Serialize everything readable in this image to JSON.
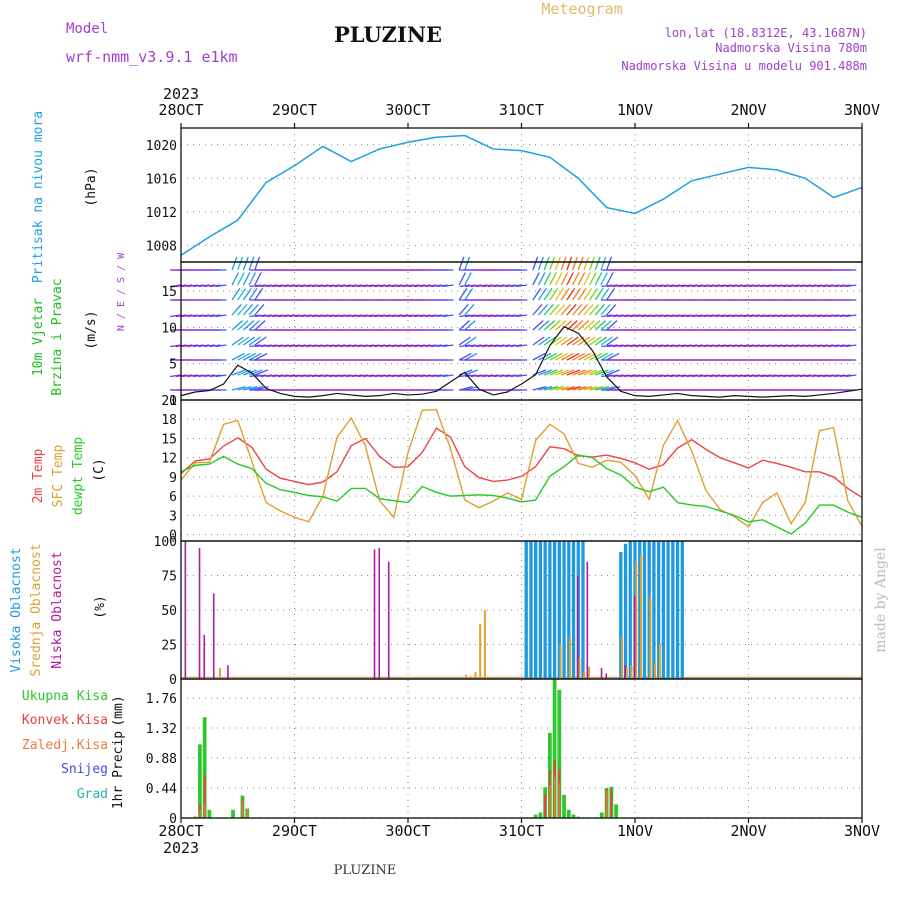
{
  "header": {
    "title": "PLUZINE",
    "model_label": "Model",
    "model_name": "wrf-nmm_v3.9.1 e1km",
    "product": "Meteogram",
    "location": "lon,lat (18.8312E, 43.1687N)",
    "elevation": "Nadmorska Visina 780m",
    "model_elevation": "Nadmorska Visina u modelu 901.488m"
  },
  "time_axis": {
    "labels": [
      "28OCT",
      "29OCT",
      "30OCT",
      "31OCT",
      "1NOV",
      "2NOV",
      "3NOV"
    ],
    "year": "2023",
    "range_hours": [
      0,
      144
    ]
  },
  "footer": {
    "station": "PLUZINE",
    "credit": "made by Angel"
  },
  "colors": {
    "pressure": "#1ea0e6",
    "wind_label": "#1fbf1f",
    "temp2m": "#ee4444",
    "sfc": "#e0a030",
    "dew": "#22cc22",
    "high_cloud": "#1e9be0",
    "mid_cloud": "#e0a030",
    "low_cloud": "#b01a9c",
    "precip_total": "#2ec82e",
    "precip_conv": "#e84040",
    "precip_strat": "#ee7b3a",
    "snow": "#4a4aee",
    "hail": "#22b6b0",
    "violet": "#a040d0",
    "grid": "#888888"
  },
  "chart_data": [
    {
      "type": "line",
      "name": "pressure",
      "ylabel_lines": [
        "Pritisak na nivou mora",
        "(hPa)"
      ],
      "yticks": [
        1008,
        1012,
        1016,
        1020
      ],
      "ylim": [
        1006,
        1022
      ],
      "x": [
        0,
        6,
        12,
        18,
        24,
        30,
        36,
        42,
        48,
        54,
        60,
        66,
        72,
        78,
        84,
        90,
        96,
        102,
        108,
        114,
        120,
        126,
        132,
        138,
        144
      ],
      "series": [
        {
          "values": [
            1006.8,
            1009,
            1011,
            1015.5,
            1017.5,
            1019.8,
            1018,
            1019.5,
            1020.3,
            1020.9,
            1021.1,
            1019.5,
            1019.3,
            1018.5,
            1016,
            1012.5,
            1011.8,
            1013.5,
            1015.7,
            1016.5,
            1017.3,
            1017,
            1016,
            1013.7,
            1014.9
          ]
        }
      ]
    },
    {
      "type": "line",
      "name": "wind",
      "ylabel_lines": [
        "10m Vjetar",
        "Brzina i Pravac",
        "(m/s)"
      ],
      "compass": "N / E / S / W",
      "yticks": [
        0,
        5,
        10,
        15
      ],
      "ylim": [
        0,
        19
      ],
      "x": [
        0,
        3,
        6,
        9,
        12,
        15,
        18,
        21,
        24,
        27,
        30,
        33,
        36,
        39,
        42,
        45,
        48,
        51,
        54,
        57,
        60,
        63,
        66,
        69,
        72,
        75,
        78,
        81,
        84,
        87,
        90,
        93,
        96,
        99,
        102,
        105,
        108,
        111,
        114,
        117,
        120,
        123,
        126,
        129,
        132,
        135,
        138,
        141,
        144
      ],
      "series": [
        {
          "values": [
            0.6,
            1.1,
            1.3,
            2.2,
            4.8,
            3.7,
            1.6,
            0.9,
            0.5,
            0.4,
            0.6,
            0.9,
            0.7,
            0.5,
            0.6,
            0.9,
            0.7,
            0.8,
            1.2,
            2.5,
            3.8,
            1.5,
            0.7,
            1.1,
            2.2,
            3.5,
            7.5,
            10.1,
            9.2,
            6.8,
            3.2,
            1.2,
            0.6,
            0.5,
            0.7,
            0.9,
            0.6,
            0.5,
            0.4,
            0.6,
            0.5,
            0.4,
            0.5,
            0.6,
            0.5,
            0.7,
            0.9,
            1.2,
            1.5
          ]
        }
      ]
    },
    {
      "type": "line",
      "name": "temperature",
      "ylabel_lines": [
        "2m Temp",
        "SFC Temp",
        "dewpt Temp",
        "(C)"
      ],
      "yticks": [
        0,
        3,
        6,
        9,
        12,
        15,
        18,
        21
      ],
      "ylim": [
        -1,
        21
      ],
      "x": [
        0,
        3,
        6,
        9,
        12,
        15,
        18,
        21,
        24,
        27,
        30,
        33,
        36,
        39,
        42,
        45,
        48,
        51,
        54,
        57,
        60,
        63,
        66,
        69,
        72,
        75,
        78,
        81,
        84,
        87,
        90,
        93,
        96,
        99,
        102,
        105,
        108,
        111,
        114,
        117,
        120,
        123,
        126,
        129,
        132,
        135,
        138,
        141,
        144
      ],
      "series": [
        {
          "name": "2m Temp",
          "values": [
            9.5,
            11.5,
            11.8,
            13.8,
            15.1,
            13.6,
            10.2,
            8.8,
            8.3,
            7.8,
            8.2,
            9.8,
            13.9,
            15.0,
            12.2,
            10.5,
            10.6,
            12.8,
            16.6,
            15.2,
            10.6,
            8.9,
            8.3,
            8.5,
            9.1,
            10.6,
            13.7,
            13.4,
            12.3,
            12.1,
            12.4,
            11.9,
            11.2,
            10.2,
            10.9,
            13.5,
            14.8,
            13.3,
            12.0,
            11.2,
            10.4,
            11.6,
            11.1,
            10.5,
            9.8,
            9.8,
            9.0,
            7.2,
            5.8
          ]
        },
        {
          "name": "SFC Temp",
          "values": [
            8.5,
            11.2,
            11.3,
            17.2,
            17.8,
            11.4,
            5.0,
            3.7,
            2.7,
            2.0,
            6.0,
            15.2,
            18.2,
            13.8,
            5.3,
            2.7,
            12.8,
            19.4,
            19.5,
            13.4,
            5.4,
            4.2,
            5.2,
            6.5,
            5.5,
            14.7,
            17.2,
            15.7,
            11.1,
            10.5,
            11.6,
            11.3,
            9.2,
            5.5,
            13.9,
            17.8,
            13.0,
            6.9,
            3.9,
            2.8,
            1.2,
            5.0,
            6.5,
            1.7,
            5.0,
            16.2,
            16.7,
            5.3,
            1.3
          ]
        },
        {
          "name": "dewpt Temp",
          "values": [
            9.8,
            10.8,
            11.0,
            12.2,
            11.0,
            10.3,
            8.0,
            7.0,
            6.6,
            6.1,
            5.9,
            5.2,
            7.2,
            7.2,
            5.6,
            5.3,
            5.0,
            7.5,
            6.6,
            6.0,
            6.1,
            6.2,
            6.1,
            5.7,
            5.1,
            5.4,
            9.1,
            10.6,
            12.4,
            12.0,
            10.3,
            9.3,
            7.4,
            6.7,
            7.4,
            5.0,
            4.6,
            4.4,
            3.7,
            3.0,
            2.0,
            2.3,
            1.2,
            0.1,
            1.8,
            4.6,
            4.6,
            3.5,
            2.7
          ]
        }
      ]
    },
    {
      "type": "bar",
      "name": "cloud",
      "ylabel_lines": [
        "Visoka Oblacnost",
        "Srednja Oblacnost",
        "Niska Oblacnost",
        "(%)"
      ],
      "yticks": [
        0,
        25,
        50,
        75,
        100
      ],
      "ylim": [
        0,
        100
      ],
      "high_x": [
        73,
        74,
        75,
        76,
        77,
        78,
        79,
        80,
        81,
        82,
        83,
        84,
        85,
        93,
        94,
        95,
        96,
        97,
        98,
        99,
        100,
        101,
        102,
        103,
        104,
        105,
        106
      ],
      "high_values": [
        100,
        100,
        100,
        100,
        100,
        100,
        100,
        100,
        100,
        100,
        100,
        100,
        100,
        92,
        98,
        100,
        100,
        100,
        100,
        100,
        100,
        100,
        100,
        100,
        100,
        100,
        100
      ],
      "mid_x": [
        8,
        60,
        61,
        62,
        63,
        64,
        80,
        82,
        84,
        85,
        86,
        93,
        94,
        95,
        96,
        97,
        99,
        100,
        101
      ],
      "mid_values": [
        8,
        3,
        2,
        5,
        40,
        50,
        25,
        30,
        15,
        5,
        9,
        30,
        8,
        10,
        85,
        90,
        60,
        12,
        25
      ],
      "low_x": [
        1,
        4,
        5,
        7,
        10,
        41,
        42,
        44,
        84,
        86,
        89,
        90,
        94,
        96
      ],
      "low_values": [
        100,
        95,
        32,
        62,
        10,
        94,
        95,
        85,
        75,
        85,
        8,
        4,
        10,
        60
      ]
    },
    {
      "type": "bar",
      "name": "precipitation",
      "ylabel_lines": [
        "1hr Precip",
        "(mm)"
      ],
      "legend": [
        "Ukupna Kisa",
        "Konvek.Kisa",
        "Zaledj.Kisa",
        "Snijeg",
        "Grad"
      ],
      "yticks": [
        0,
        0.44,
        0.88,
        1.32,
        1.76
      ],
      "ylim": [
        0,
        2.04
      ],
      "total_x": [
        3,
        4,
        5,
        6,
        11,
        13,
        14,
        75,
        76,
        77,
        78,
        79,
        80,
        81,
        82,
        83,
        84,
        89,
        90,
        91,
        92
      ],
      "total_values": [
        0.02,
        1.08,
        1.48,
        0.12,
        0.12,
        0.33,
        0.14,
        0.05,
        0.08,
        0.45,
        1.25,
        2.04,
        1.88,
        0.34,
        0.12,
        0.05,
        0.02,
        0.08,
        0.44,
        0.46,
        0.2
      ],
      "conv_x": [
        4,
        5,
        13,
        77,
        78,
        79,
        80,
        90,
        91
      ],
      "conv_values": [
        0.2,
        0.62,
        0.28,
        0.35,
        0.7,
        0.85,
        0.72,
        0.42,
        0.42
      ],
      "strat_x": [
        4,
        5,
        13,
        14,
        78,
        79,
        80,
        90
      ],
      "strat_values": [
        0.12,
        0.2,
        0.25,
        0.14,
        0.48,
        0.6,
        0.5,
        0.4
      ]
    }
  ]
}
